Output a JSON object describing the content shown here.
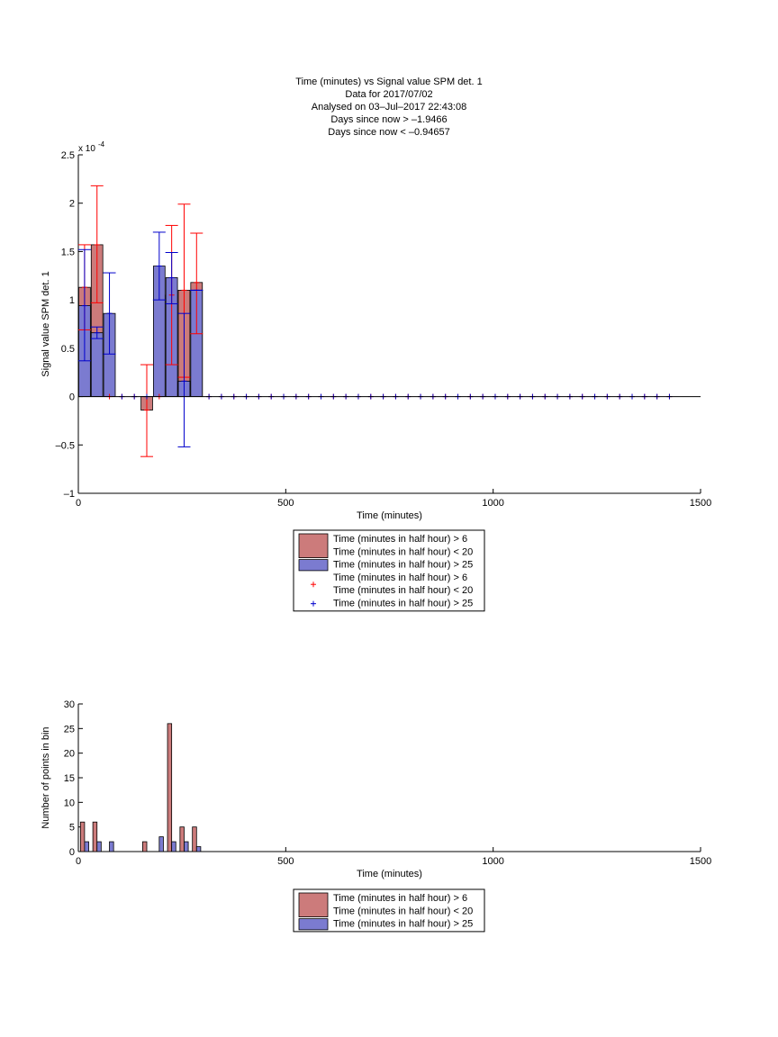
{
  "figure": {
    "title_lines": [
      "Time (minutes) vs Signal value SPM det. 1",
      "Data for 2017/07/02",
      "Analysed on 03–Jul–2017 22:43:08",
      "Days since now > –1.9466",
      "Days since now < –0.94657"
    ]
  },
  "colors": {
    "red_fill": "#cc7b7b",
    "blue_fill": "#7b7bd0",
    "red_line": "#ff0000",
    "blue_line": "#0000cc",
    "axis": "#000000"
  },
  "chart_data": [
    {
      "type": "bar",
      "xlabel": "Time (minutes)",
      "ylabel": "Signal value SPM det. 1",
      "xlim": [
        0,
        1500
      ],
      "ylim": [
        -1,
        2.5
      ],
      "y_exponent_label": "x 10",
      "y_exponent_power": "-4",
      "x_ticks": [
        "0",
        "500",
        "1000",
        "1500"
      ],
      "y_ticks": [
        "–1",
        "–0.5",
        "0",
        "0.5",
        "1",
        "1.5",
        "2",
        "2.5"
      ],
      "x_tick_values": [
        0,
        500,
        1000,
        1500
      ],
      "y_tick_values": [
        -1,
        -0.5,
        0,
        0.5,
        1,
        1.5,
        2,
        2.5
      ],
      "bar_width": 28,
      "series": [
        {
          "name": "Time (minutes in half hour) > 6\nTime (minutes in half hour) < 20",
          "color": "#cc7b7b",
          "x": [
            15,
            45,
            165,
            225,
            255,
            285
          ],
          "values": [
            1.13,
            1.57,
            -0.14,
            1.05,
            1.1,
            1.18
          ]
        },
        {
          "name": "Time (minutes in half hour) > 25",
          "color": "#7b7bd0",
          "x": [
            15,
            45,
            75,
            195,
            225,
            255,
            285
          ],
          "values": [
            0.94,
            0.66,
            0.86,
            1.35,
            1.23,
            0.16,
            1.1
          ]
        }
      ],
      "errorbars": [
        {
          "name": "Time (minutes in half hour) > 6\nTime (minutes in half hour) < 20",
          "color": "#ff0000",
          "x": [
            15,
            45,
            165,
            225,
            255,
            285
          ],
          "y": [
            1.13,
            1.57,
            -0.14,
            1.05,
            1.1,
            1.18
          ],
          "low": [
            0.69,
            0.97,
            -0.62,
            0.33,
            0.2,
            0.65
          ],
          "high": [
            1.57,
            2.18,
            0.33,
            1.77,
            1.99,
            1.69
          ],
          "zero_markers_x": [
            75,
            105,
            135,
            195,
            315,
            345,
            375,
            405,
            435,
            465,
            495,
            525,
            555,
            585,
            615,
            645,
            675,
            705,
            735,
            765,
            795,
            825,
            855,
            885,
            915,
            945,
            975,
            1005,
            1035,
            1065,
            1095,
            1125,
            1155,
            1185,
            1215,
            1245,
            1275,
            1305,
            1335,
            1365,
            1395,
            1425
          ]
        },
        {
          "name": "Time (minutes in half hour) > 25",
          "color": "#0000cc",
          "x": [
            15,
            45,
            75,
            195,
            225,
            255,
            285
          ],
          "y": [
            0.94,
            0.66,
            0.86,
            1.35,
            1.23,
            0.16,
            1.1
          ],
          "low": [
            0.37,
            0.6,
            0.44,
            1.0,
            0.96,
            -0.52,
            1.1
          ],
          "high": [
            1.52,
            0.72,
            1.28,
            1.7,
            1.49,
            0.86,
            1.1
          ],
          "zero_markers_x": [
            105,
            135,
            165,
            315,
            345,
            375,
            405,
            435,
            465,
            495,
            525,
            555,
            585,
            615,
            645,
            675,
            705,
            735,
            765,
            795,
            825,
            855,
            885,
            915,
            945,
            975,
            1005,
            1035,
            1065,
            1095,
            1125,
            1155,
            1185,
            1215,
            1245,
            1275,
            1305,
            1335,
            1365,
            1395,
            1425
          ]
        }
      ],
      "legend": {
        "placement": "below",
        "entries": [
          {
            "kind": "patch",
            "color": "#cc7b7b",
            "lines": [
              "Time (minutes in half hour) > 6",
              "Time (minutes in half hour) < 20"
            ]
          },
          {
            "kind": "patch",
            "color": "#7b7bd0",
            "lines": [
              "Time (minutes in half hour) > 25"
            ]
          },
          {
            "kind": "marker",
            "color": "#ff0000",
            "lines": [
              "Time (minutes in half hour) > 6",
              "Time (minutes in half hour) < 20"
            ]
          },
          {
            "kind": "marker",
            "color": "#0000cc",
            "lines": [
              "Time (minutes in half hour) > 25"
            ]
          }
        ]
      }
    },
    {
      "type": "bar",
      "xlabel": "Time (minutes)",
      "ylabel": "Number of points in bin",
      "xlim": [
        0,
        1500
      ],
      "ylim": [
        0,
        30
      ],
      "x_ticks": [
        "0",
        "500",
        "1000",
        "1500"
      ],
      "y_ticks": [
        "0",
        "5",
        "10",
        "15",
        "20",
        "25",
        "30"
      ],
      "x_tick_values": [
        0,
        500,
        1000,
        1500
      ],
      "y_tick_values": [
        0,
        5,
        10,
        15,
        20,
        25,
        30
      ],
      "bar_width": 10,
      "series": [
        {
          "name": "Time (minutes in half hour) > 6\nTime (minutes in half hour) < 20",
          "color": "#cc7b7b",
          "x": [
            10,
            40,
            160,
            220,
            250,
            280
          ],
          "values": [
            6,
            6,
            2,
            26,
            5,
            5
          ]
        },
        {
          "name": "Time (minutes in half hour) > 25",
          "color": "#7b7bd0",
          "x": [
            20,
            50,
            80,
            200,
            230,
            260,
            290
          ],
          "values": [
            2,
            2,
            2,
            3,
            2,
            2,
            1
          ]
        }
      ],
      "legend": {
        "placement": "below",
        "entries": [
          {
            "kind": "patch",
            "color": "#cc7b7b",
            "lines": [
              "Time (minutes in half hour) > 6",
              "Time (minutes in half hour) < 20"
            ]
          },
          {
            "kind": "patch",
            "color": "#7b7bd0",
            "lines": [
              "Time (minutes in half hour) > 25"
            ]
          }
        ]
      }
    }
  ]
}
